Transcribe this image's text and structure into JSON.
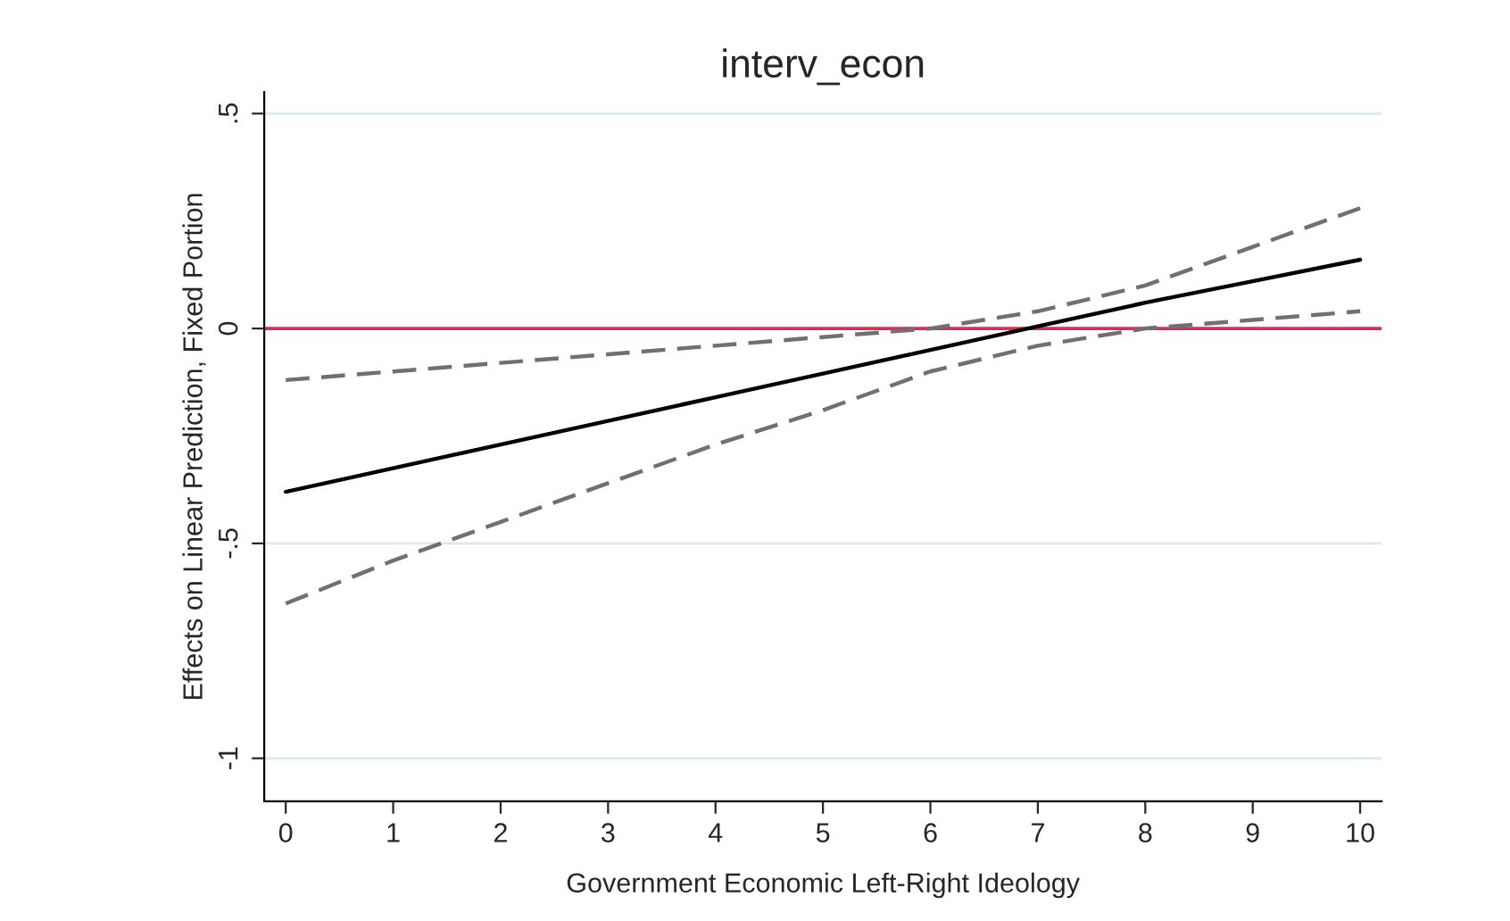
{
  "chart_data": {
    "type": "line",
    "title": "interv_econ",
    "xlabel": "Government Economic Left-Right Ideology",
    "ylabel": "Effects on Linear Prediction, Fixed Portion",
    "x": [
      0,
      1,
      2,
      3,
      4,
      5,
      6,
      7,
      8,
      9,
      10
    ],
    "series": [
      {
        "color": "#000000",
        "line_style": "solid",
        "values": [
          -0.38,
          -0.325,
          -0.27,
          -0.215,
          -0.16,
          -0.105,
          -0.05,
          0.005,
          0.06,
          0.11,
          0.16
        ]
      },
      {
        "color": "#707070",
        "line_style": "dashed",
        "values": [
          -0.12,
          -0.1,
          -0.08,
          -0.06,
          -0.04,
          -0.02,
          0.0,
          0.04,
          0.1,
          0.19,
          0.28
        ]
      },
      {
        "color": "#707070",
        "line_style": "dashed",
        "values": [
          -0.64,
          -0.54,
          -0.45,
          -0.36,
          -0.27,
          -0.19,
          -0.1,
          -0.04,
          0.0,
          0.02,
          0.04
        ]
      }
    ],
    "xlim": [
      -0.2,
      10.2
    ],
    "xticks": [
      0,
      1,
      2,
      3,
      4,
      5,
      6,
      7,
      8,
      9,
      10
    ],
    "ylim": [
      -1.1,
      0.55
    ],
    "yticks": [
      {
        "value": 0.5,
        "label": ".5"
      },
      0,
      {
        "value": -0.5,
        "label": "-.5"
      },
      -1
    ],
    "ref_lines": [
      {
        "axis": "y",
        "value": 0,
        "color": "#d0305a"
      }
    ],
    "grid": "y",
    "legend": false,
    "marker": "none"
  }
}
